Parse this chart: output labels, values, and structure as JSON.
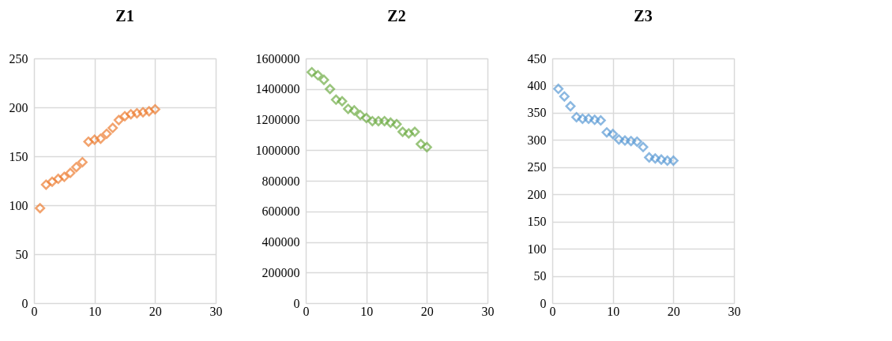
{
  "chart_data": [
    {
      "type": "scatter",
      "title": "Z1",
      "marker": "diamond",
      "grid": true,
      "xlim": [
        0,
        30
      ],
      "xticks": [
        0,
        10,
        20,
        30
      ],
      "ylim": [
        0,
        250
      ],
      "yticks": [
        0,
        50,
        100,
        150,
        200,
        250
      ],
      "x": [
        1,
        2,
        3,
        4,
        5,
        6,
        7,
        8,
        9,
        10,
        11,
        12,
        13,
        14,
        15,
        16,
        17,
        18,
        19,
        20
      ],
      "series": [
        {
          "color": "#ed7d31",
          "values": [
            97,
            121,
            124,
            127,
            129,
            133,
            139,
            144,
            165,
            167,
            168,
            173,
            179,
            187,
            191,
            193,
            194,
            195,
            196,
            198
          ]
        }
      ]
    },
    {
      "type": "scatter",
      "title": "Z2",
      "marker": "diamond",
      "grid": true,
      "xlim": [
        0,
        30
      ],
      "xticks": [
        0,
        10,
        20,
        30
      ],
      "ylim": [
        0,
        1600000
      ],
      "yticks": [
        0,
        200000,
        400000,
        600000,
        800000,
        1000000,
        1200000,
        1400000,
        1600000
      ],
      "x": [
        1,
        2,
        3,
        4,
        5,
        6,
        7,
        8,
        9,
        10,
        11,
        12,
        13,
        14,
        15,
        16,
        17,
        18,
        19,
        20
      ],
      "series": [
        {
          "color": "#70ad47",
          "values": [
            1510000,
            1490000,
            1460000,
            1400000,
            1330000,
            1320000,
            1270000,
            1260000,
            1230000,
            1210000,
            1190000,
            1190000,
            1190000,
            1180000,
            1170000,
            1120000,
            1110000,
            1120000,
            1040000,
            1020000
          ]
        }
      ]
    },
    {
      "type": "scatter",
      "title": "Z3",
      "marker": "diamond",
      "grid": true,
      "xlim": [
        0,
        30
      ],
      "xticks": [
        0,
        10,
        20,
        30
      ],
      "ylim": [
        0,
        450
      ],
      "yticks": [
        0,
        50,
        100,
        150,
        200,
        250,
        300,
        350,
        400,
        450
      ],
      "x": [
        1,
        2,
        3,
        4,
        5,
        6,
        7,
        8,
        9,
        10,
        11,
        12,
        13,
        14,
        15,
        16,
        17,
        18,
        19,
        20
      ],
      "series": [
        {
          "color": "#5b9bd5",
          "values": [
            394,
            380,
            362,
            342,
            339,
            339,
            337,
            336,
            314,
            311,
            301,
            299,
            298,
            297,
            287,
            268,
            266,
            264,
            262,
            262
          ]
        }
      ]
    }
  ]
}
